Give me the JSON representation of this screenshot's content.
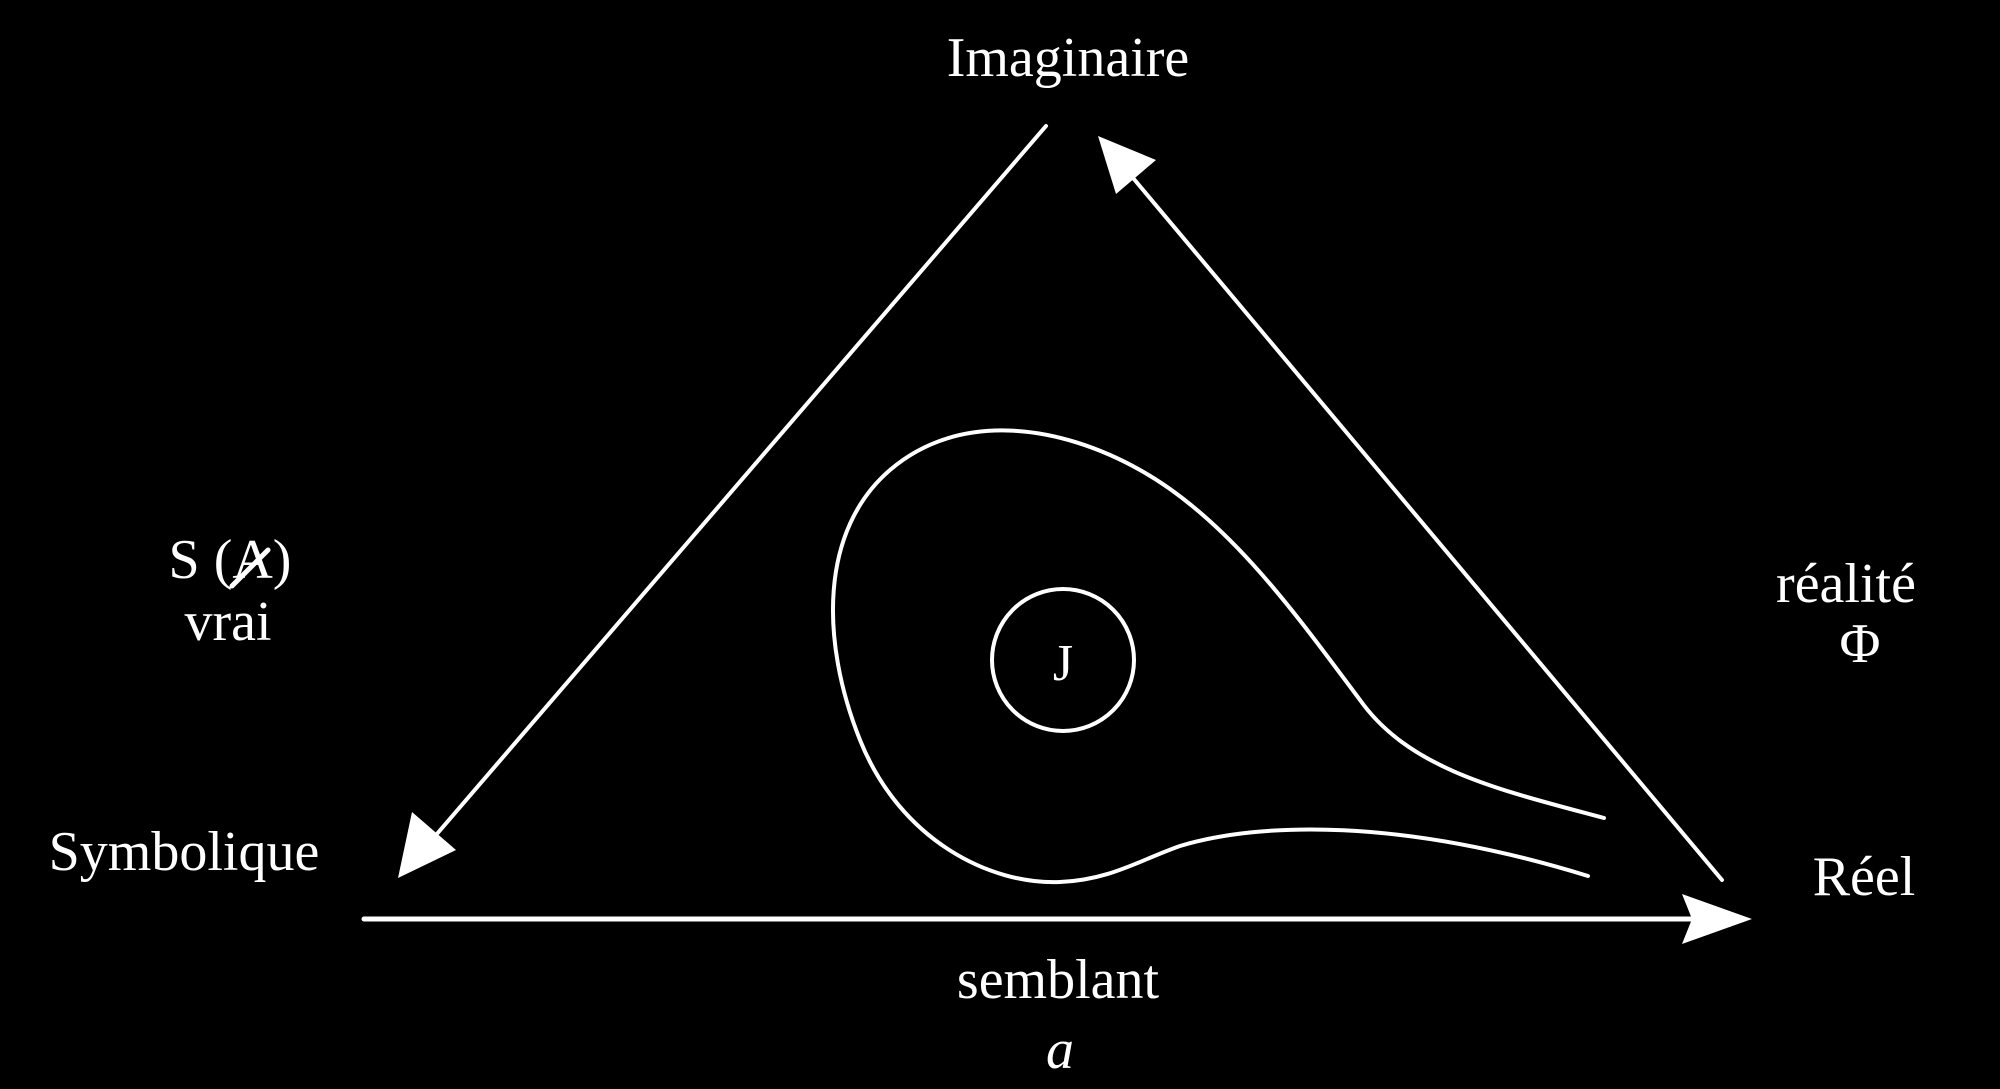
{
  "colors": {
    "background": "#000000",
    "foreground": "#ffffff"
  },
  "labels": {
    "imaginaire": "Imaginaire",
    "symbolique": "Symbolique",
    "reel": "Réel",
    "s_barred_a": "S (A)",
    "vrai": "vrai",
    "realite": "réalité",
    "phi": "Φ",
    "semblant": "semblant",
    "a": "a",
    "j": "J"
  }
}
